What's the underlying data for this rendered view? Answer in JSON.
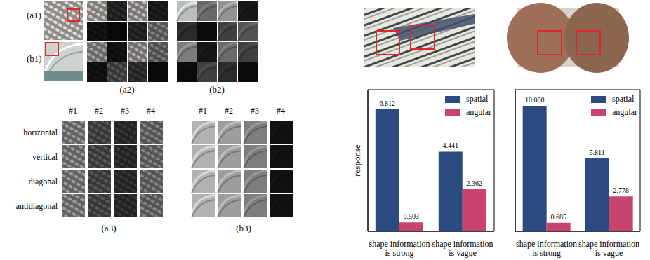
{
  "figure": {
    "image_labels": [
      "(a1)",
      "(b1)"
    ],
    "decomposition_labels": [
      "(a2)",
      "(b2)"
    ],
    "direction_labels": [
      "(a3)",
      "(b3)"
    ],
    "column_headers": [
      "#1",
      "#2",
      "#3",
      "#4"
    ],
    "row_headers": [
      "horizontal",
      "vertical",
      "diagonal",
      "antidiagonal"
    ]
  },
  "chart_data": [
    {
      "type": "bar",
      "y_label": "response",
      "categories": [
        "shape information is strong",
        "shape information is vague"
      ],
      "series": [
        {
          "name": "spatial",
          "color": "#2b4a80",
          "values": [
            6.812,
            4.441
          ]
        },
        {
          "name": "angular",
          "color": "#c8436e",
          "values": [
            0.503,
            2.362
          ]
        }
      ],
      "ylim": [
        0,
        7.9
      ],
      "legend": "upper right",
      "data_labels": true,
      "tick_labels": "x"
    },
    {
      "type": "bar",
      "categories": [
        "shape information is strong",
        "shape information is vague"
      ],
      "series": [
        {
          "name": "spatial",
          "color": "#2b4a80",
          "values": [
            10.008,
            5.811
          ]
        },
        {
          "name": "angular",
          "color": "#c8436e",
          "values": [
            0.685,
            2.778
          ]
        }
      ],
      "ylim": [
        0,
        11.3
      ],
      "legend": "upper right",
      "data_labels": true,
      "tick_labels": "x"
    }
  ]
}
